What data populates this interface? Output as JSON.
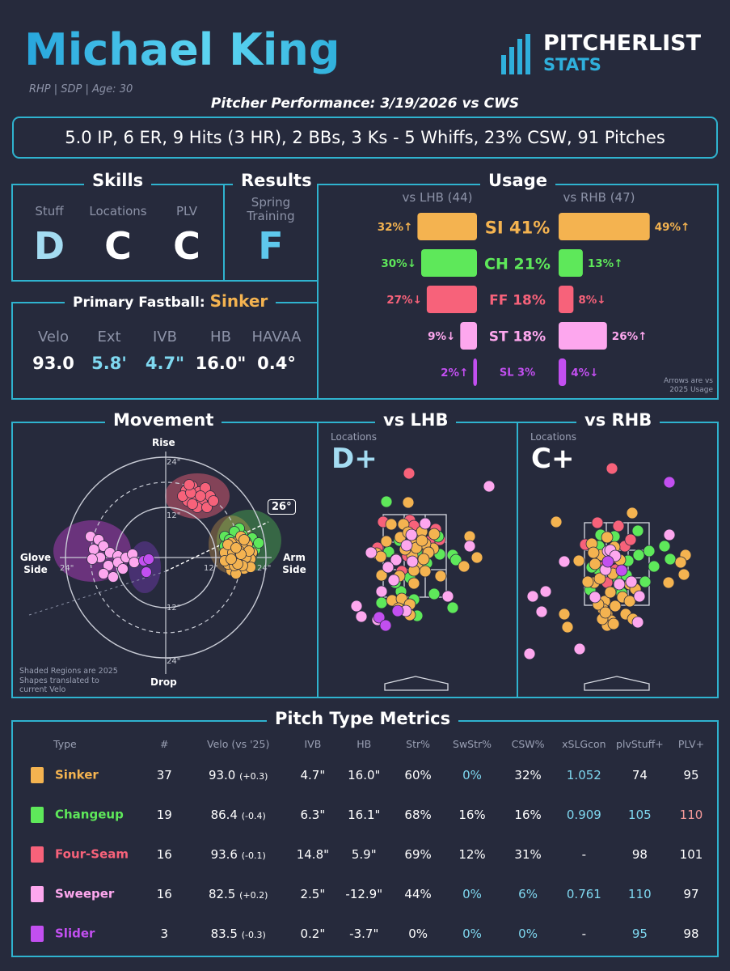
{
  "header": {
    "name": "Michael King",
    "bio": "RHP | SDP | Age: 30",
    "subtitle": "Pitcher Performance: 3/19/2026 vs CWS",
    "logo_top": "PITCHERLIST",
    "logo_bottom": "STATS",
    "summary": "5.0 IP, 6 ER, 9 Hits (3 HR), 2 BBs, 3 Ks - 5 Whiffs, 23% CSW, 91 Pitches"
  },
  "skills": {
    "title": "Skills",
    "stuff_label": "Stuff",
    "stuff_grade": "D",
    "locations_label": "Locations",
    "locations_grade": "C",
    "plv_label": "PLV",
    "plv_grade": "C"
  },
  "results": {
    "title": "Results",
    "label": "Spring Training",
    "grade": "F"
  },
  "fastball": {
    "title_prefix": "Primary Fastball:",
    "pitch": "Sinker",
    "metrics": [
      {
        "label": "Velo",
        "value": "93.0"
      },
      {
        "label": "Ext",
        "value": "5.8'"
      },
      {
        "label": "IVB",
        "value": "4.7\""
      },
      {
        "label": "HB",
        "value": "16.0\""
      },
      {
        "label": "HAVAA",
        "value": "0.4°"
      }
    ]
  },
  "usage": {
    "title": "Usage",
    "lhb_label": "vs LHB (44)",
    "rhb_label": "vs RHB (47)",
    "note": "Arrows are vs 2025 Usage",
    "rows": [
      {
        "pitch": "SI 41%",
        "color": "#f4b350",
        "lhb": 32,
        "lhb_text": "32%↑",
        "rhb": 49,
        "rhb_text": "49%↑",
        "size": 21
      },
      {
        "pitch": "CH 21%",
        "color": "#5ee85a",
        "lhb": 30,
        "lhb_text": "30%↓",
        "rhb": 13,
        "rhb_text": "13%↑",
        "size": 19
      },
      {
        "pitch": "FF 18%",
        "color": "#f7627a",
        "lhb": 27,
        "lhb_text": "27%↓",
        "rhb": 8,
        "rhb_text": "8%↓",
        "size": 17
      },
      {
        "pitch": "ST 18%",
        "color": "#fda7ee",
        "lhb": 9,
        "lhb_text": "9%↓",
        "rhb": 26,
        "rhb_text": "26%↑",
        "size": 17
      },
      {
        "pitch": "SL 3%",
        "color": "#c24ff0",
        "lhb": 2,
        "lhb_text": "2%↑",
        "rhb": 4,
        "rhb_text": "4%↓",
        "size": 13
      }
    ]
  },
  "movement": {
    "title": "Movement",
    "rise": "Rise",
    "drop": "Drop",
    "glove": "Glove Side",
    "arm": "Arm Side",
    "angle": "26°",
    "ring_labels": [
      "12\"",
      "24\""
    ],
    "note": "Shaded Regions are 2025 Shapes translated to current Velo"
  },
  "locations": {
    "lhb": {
      "title": "vs LHB",
      "label": "Locations",
      "grade": "D+"
    },
    "rhb": {
      "title": "vs RHB",
      "label": "Locations",
      "grade": "C+"
    }
  },
  "chart_data": {
    "type": "table",
    "title": "Pitch Type Metrics",
    "columns": [
      "Type",
      "#",
      "Velo (vs '25)",
      "IVB",
      "HB",
      "Str%",
      "SwStr%",
      "CSW%",
      "xSLGcon",
      "plvStuff+",
      "PLV+"
    ],
    "rows": [
      {
        "type": "Sinker",
        "color": "#f4b350",
        "n": "37",
        "velo": "93.0",
        "delta": "(+0.3)",
        "ivb": "4.7\"",
        "hb": "16.0\"",
        "str": "60%",
        "swstr": "0%",
        "csw": "32%",
        "xslg": "1.052",
        "stuff": "74",
        "plv": "95",
        "c_swstr": "#7fd8f0",
        "c_csw": "#ffffff",
        "c_xslg": "#7fd8f0",
        "c_stuff": "#ffffff",
        "c_plv": "#ffffff"
      },
      {
        "type": "Changeup",
        "color": "#5ee85a",
        "n": "19",
        "velo": "86.4",
        "delta": "(-0.4)",
        "ivb": "6.3\"",
        "hb": "16.1\"",
        "str": "68%",
        "swstr": "16%",
        "csw": "16%",
        "xslg": "0.909",
        "stuff": "105",
        "plv": "110",
        "c_swstr": "#ffffff",
        "c_csw": "#ffffff",
        "c_xslg": "#7fd8f0",
        "c_stuff": "#7fd8f0",
        "c_plv": "#f79a9a"
      },
      {
        "type": "Four-Seam",
        "color": "#f7627a",
        "n": "16",
        "velo": "93.6",
        "delta": "(-0.1)",
        "ivb": "14.8\"",
        "hb": "5.9\"",
        "str": "69%",
        "swstr": "12%",
        "csw": "31%",
        "xslg": "-",
        "stuff": "98",
        "plv": "101",
        "c_swstr": "#ffffff",
        "c_csw": "#ffffff",
        "c_xslg": "#ffffff",
        "c_stuff": "#ffffff",
        "c_plv": "#ffffff"
      },
      {
        "type": "Sweeper",
        "color": "#fda7ee",
        "n": "16",
        "velo": "82.5",
        "delta": "(+0.2)",
        "ivb": "2.5\"",
        "hb": "-12.9\"",
        "str": "44%",
        "swstr": "0%",
        "csw": "6%",
        "xslg": "0.761",
        "stuff": "110",
        "plv": "97",
        "c_swstr": "#7fd8f0",
        "c_csw": "#7fd8f0",
        "c_xslg": "#7fd8f0",
        "c_stuff": "#7fd8f0",
        "c_plv": "#ffffff"
      },
      {
        "type": "Slider",
        "color": "#c24ff0",
        "n": "3",
        "velo": "83.5",
        "delta": "(-0.3)",
        "ivb": "0.2\"",
        "hb": "-3.7\"",
        "str": "0%",
        "swstr": "0%",
        "csw": "0%",
        "xslg": "-",
        "stuff": "95",
        "plv": "98",
        "c_swstr": "#7fd8f0",
        "c_csw": "#7fd8f0",
        "c_xslg": "#ffffff",
        "c_stuff": "#7fd8f0",
        "c_plv": "#ffffff"
      }
    ]
  }
}
